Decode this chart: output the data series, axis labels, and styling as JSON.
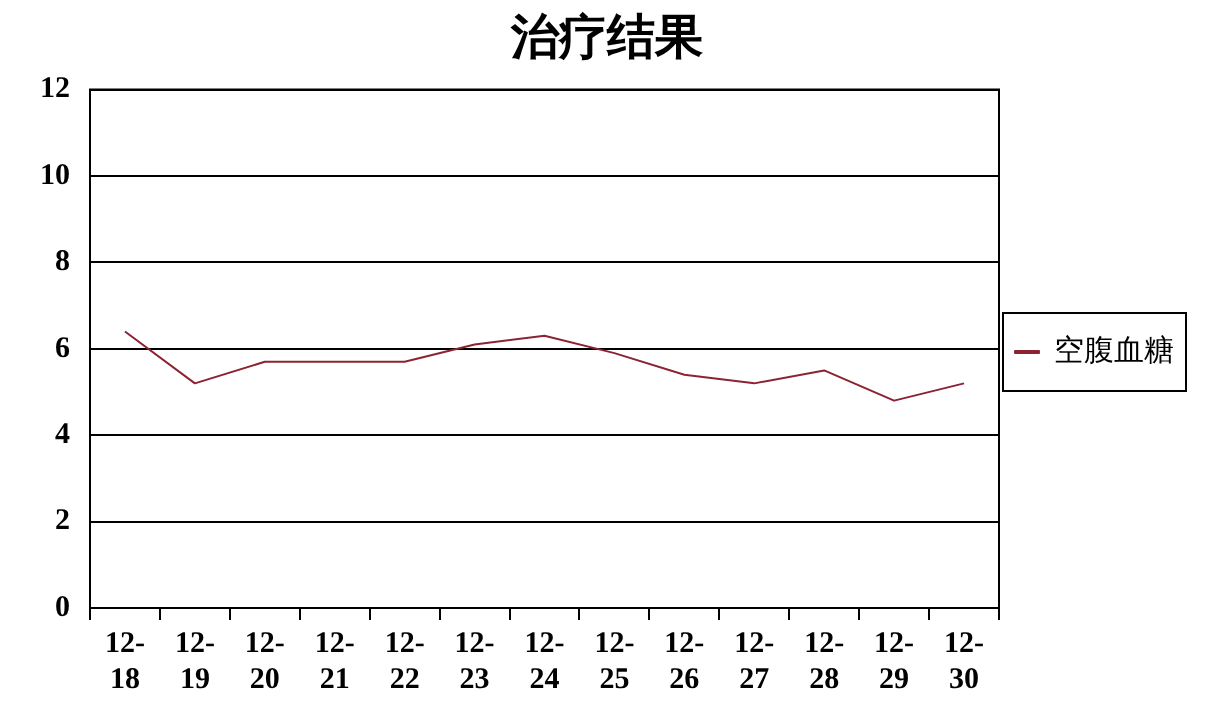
{
  "chart_data": {
    "type": "line",
    "title": "治疗结果",
    "categories": [
      "12-18",
      "12-19",
      "12-20",
      "12-21",
      "12-22",
      "12-23",
      "12-24",
      "12-25",
      "12-26",
      "12-27",
      "12-28",
      "12-29",
      "12-30"
    ],
    "series": [
      {
        "name": "空腹血糖",
        "color": "#8b2332",
        "values": [
          6.4,
          5.2,
          5.7,
          5.7,
          5.7,
          6.1,
          6.3,
          5.9,
          5.4,
          5.2,
          5.5,
          4.8,
          5.2
        ]
      }
    ],
    "ylim": [
      0,
      12
    ],
    "yticks": [
      0,
      2,
      4,
      6,
      8,
      10,
      12
    ],
    "grid": "y",
    "legend": "right",
    "marker": "none",
    "line_style": "solid"
  }
}
